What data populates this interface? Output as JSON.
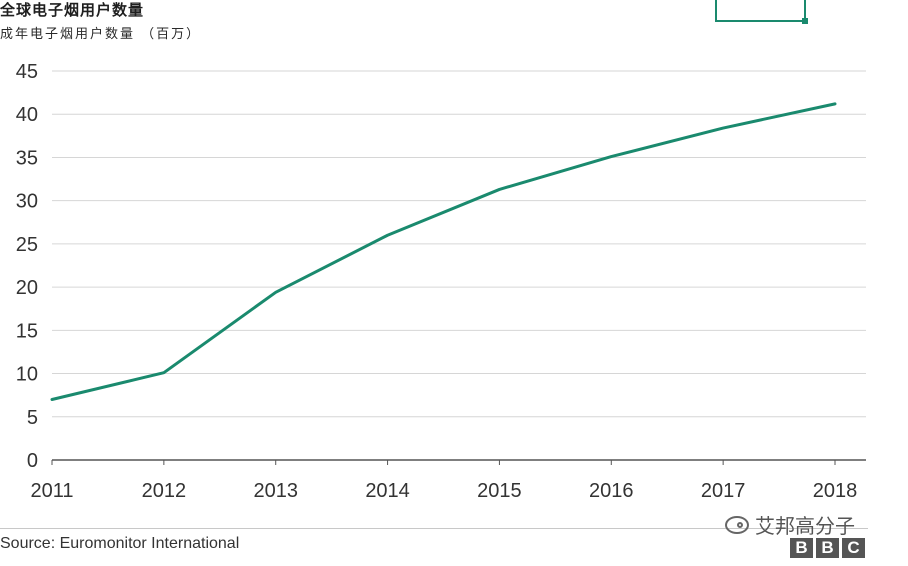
{
  "chart_data": {
    "type": "line",
    "title": "全球电子烟用户数量",
    "subtitle": "成年电子烟用户数量 （百万）",
    "x": [
      "2011",
      "2012",
      "2013",
      "2014",
      "2015",
      "2016",
      "2017",
      "2018"
    ],
    "series": [
      {
        "values": [
          7,
          10.1,
          19.4,
          26,
          31.3,
          35.1,
          38.4,
          41.2
        ]
      }
    ],
    "yticks": [
      0,
      5,
      10,
      15,
      20,
      25,
      30,
      35,
      40,
      45
    ],
    "ylim": [
      0,
      45
    ],
    "grid": true,
    "line_color": "#1a8a6e"
  },
  "source": "Source: Euromonitor International",
  "watermark": "艾邦高分子",
  "bbc_letters": [
    "B",
    "B",
    "C"
  ]
}
